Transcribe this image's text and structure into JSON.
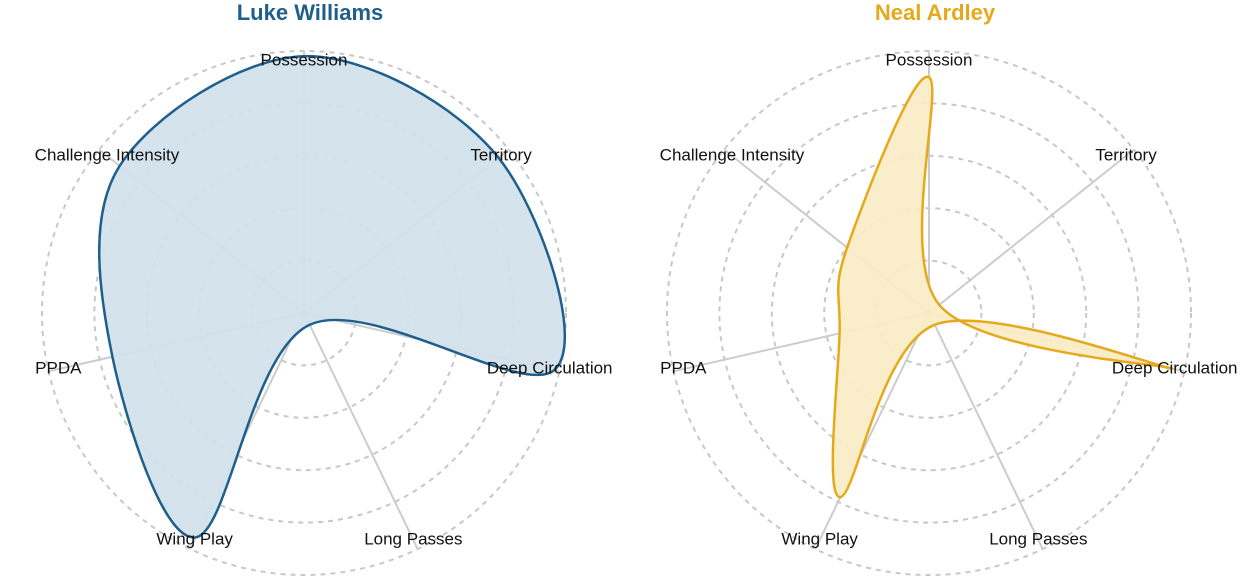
{
  "chart_data": [
    {
      "type": "radar",
      "title": "Luke Williams",
      "axes": [
        "Possession",
        "Territory",
        "Deep Circulation",
        "Long Passes",
        "Wing Play",
        "PPDA",
        "Challenge Intensity"
      ],
      "values": [
        0.98,
        0.95,
        0.98,
        0.05,
        0.95,
        0.75,
        0.9
      ],
      "range": [
        0,
        1
      ],
      "rings": 5,
      "grid": true,
      "color": "#1f5f8b",
      "fill": "#d3e1ec"
    },
    {
      "type": "radar",
      "title": "Neal Ardley",
      "axes": [
        "Possession",
        "Territory",
        "Deep Circulation",
        "Long Passes",
        "Wing Play",
        "PPDA",
        "Challenge Intensity"
      ],
      "values": [
        0.9,
        0.05,
        0.95,
        0.05,
        0.78,
        0.35,
        0.4
      ],
      "range": [
        0,
        1
      ],
      "rings": 5,
      "grid": true,
      "color": "#e6a91b",
      "fill": "#faecc6"
    }
  ]
}
